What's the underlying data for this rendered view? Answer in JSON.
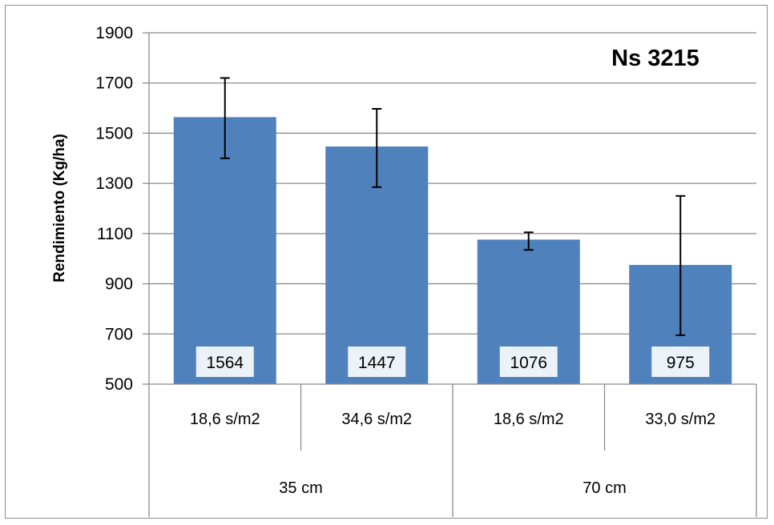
{
  "chart_data": {
    "type": "bar",
    "title": "Ns 3215",
    "ylabel": "Rendimiento (Kg/ha)",
    "xlabel": "",
    "ylim": [
      500,
      1900
    ],
    "yticks": [
      500,
      700,
      900,
      1100,
      1300,
      1500,
      1700,
      1900
    ],
    "grid": true,
    "legend": "none",
    "bar_color": "#4f81bd",
    "categories": [
      "18,6 s/m2",
      "34,6 s/m2",
      "18,6 s/m2",
      "33,0 s/m2"
    ],
    "groups": [
      {
        "label": "35 cm",
        "span": 2
      },
      {
        "label": "70 cm",
        "span": 2
      }
    ],
    "values": [
      1564,
      1447,
      1076,
      975
    ],
    "data_labels": [
      "1564",
      "1447",
      "1076",
      "975"
    ],
    "error_low": [
      1400,
      1285,
      1035,
      695
    ],
    "error_high": [
      1720,
      1597,
      1105,
      1250
    ]
  }
}
